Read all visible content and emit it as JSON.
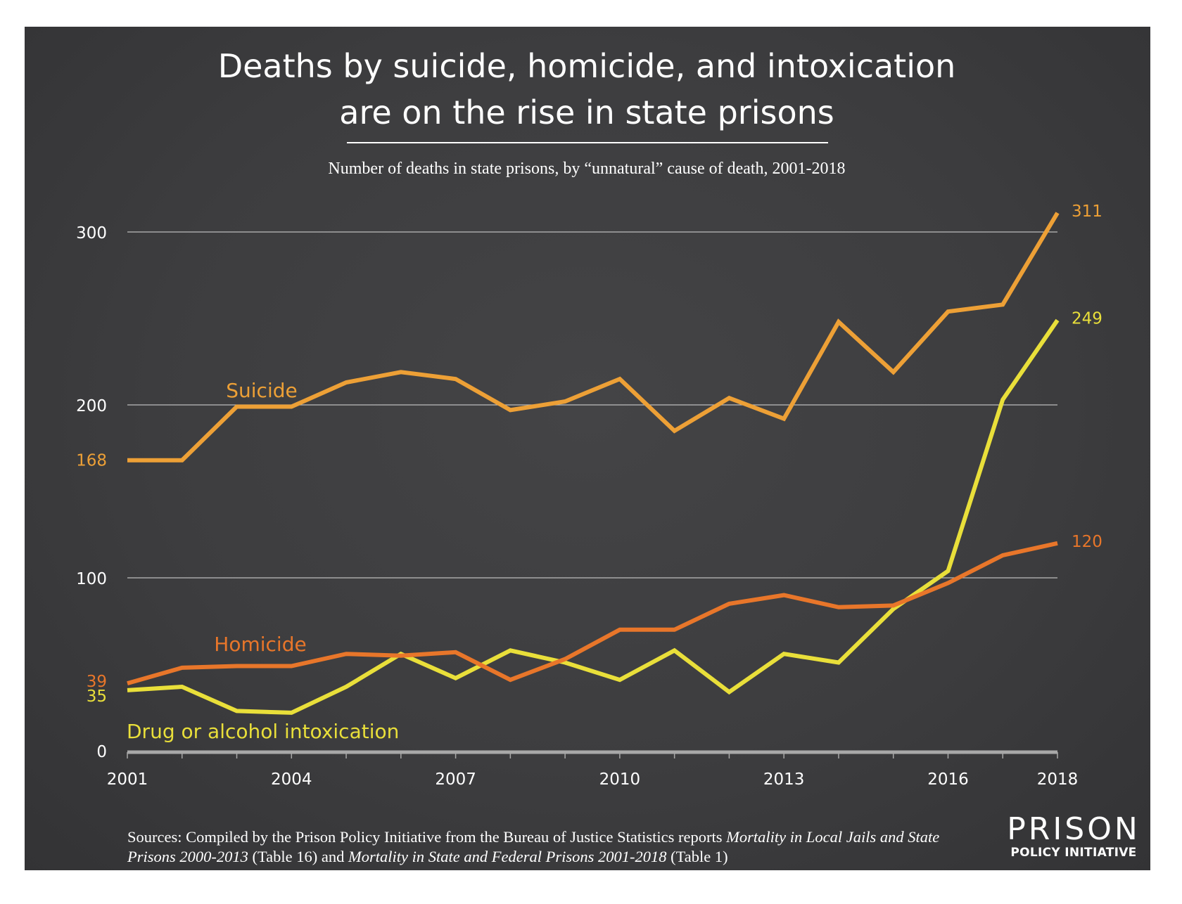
{
  "chart_data": {
    "type": "line",
    "title": "Deaths by suicide, homicide, and intoxication are on the rise in state prisons",
    "title_lines": [
      "Deaths by suicide, homicide, and intoxication",
      "are on the rise in state prisons"
    ],
    "subtitle": "Number of deaths in state prisons, by “unnatural” cause of death, 2001-2018",
    "xlabel": "",
    "ylabel": "",
    "x": [
      2001,
      2002,
      2003,
      2004,
      2005,
      2006,
      2007,
      2008,
      2009,
      2010,
      2011,
      2012,
      2013,
      2014,
      2015,
      2016,
      2017,
      2018
    ],
    "x_tick_labels": [
      "2001",
      "2004",
      "2007",
      "2010",
      "2013",
      "2016",
      "2018"
    ],
    "x_tick_values": [
      2001,
      2004,
      2007,
      2010,
      2013,
      2016,
      2018
    ],
    "ylim": [
      0,
      300
    ],
    "y_ticks": [
      0,
      100,
      200,
      300
    ],
    "y_tick_labels": [
      "0",
      "100",
      "200",
      "300"
    ],
    "grid": true,
    "series": [
      {
        "name": "Suicide",
        "color": "#EDA036",
        "values": [
          168,
          168,
          199,
          199,
          213,
          219,
          215,
          197,
          202,
          215,
          185,
          204,
          192,
          248,
          219,
          254,
          258,
          311
        ],
        "start_label": "168",
        "end_label": "311"
      },
      {
        "name": "Homicide",
        "color": "#E8762A",
        "values": [
          39,
          48,
          49,
          49,
          56,
          55,
          57,
          41,
          53,
          70,
          70,
          85,
          90,
          83,
          84,
          97,
          113,
          120
        ],
        "start_label": "39",
        "end_label": "120"
      },
      {
        "name": "Drug or alcohol intoxication",
        "color": "#E9DF3A",
        "values": [
          35,
          37,
          23,
          22,
          37,
          56,
          42,
          58,
          51,
          41,
          58,
          34,
          56,
          51,
          82,
          104,
          203,
          249
        ],
        "start_label": "35",
        "end_label": "249"
      }
    ],
    "annotations": [
      "Suicide",
      "Homicide",
      "Drug or alcohol intoxication"
    ],
    "legend": "inline labels"
  },
  "sources": {
    "prefix": "Sources: Compiled by the Prison Policy Initiative from the Bureau of Justice Statistics reports ",
    "report1": "Mortality in Local Jails and State Prisons 2000-2013",
    "mid": " (Table 16) and ",
    "report2": "Mortality in State and Federal Prisons 2001-2018",
    "suffix": " (Table 1)"
  },
  "logo": {
    "top": "PRISON",
    "bottom": "POLICY INITIATIVE"
  },
  "colors": {
    "background": "#3f3f41",
    "text": "#ffffff",
    "grid": "#bdbdbd",
    "axis": "#a8a8a8"
  }
}
